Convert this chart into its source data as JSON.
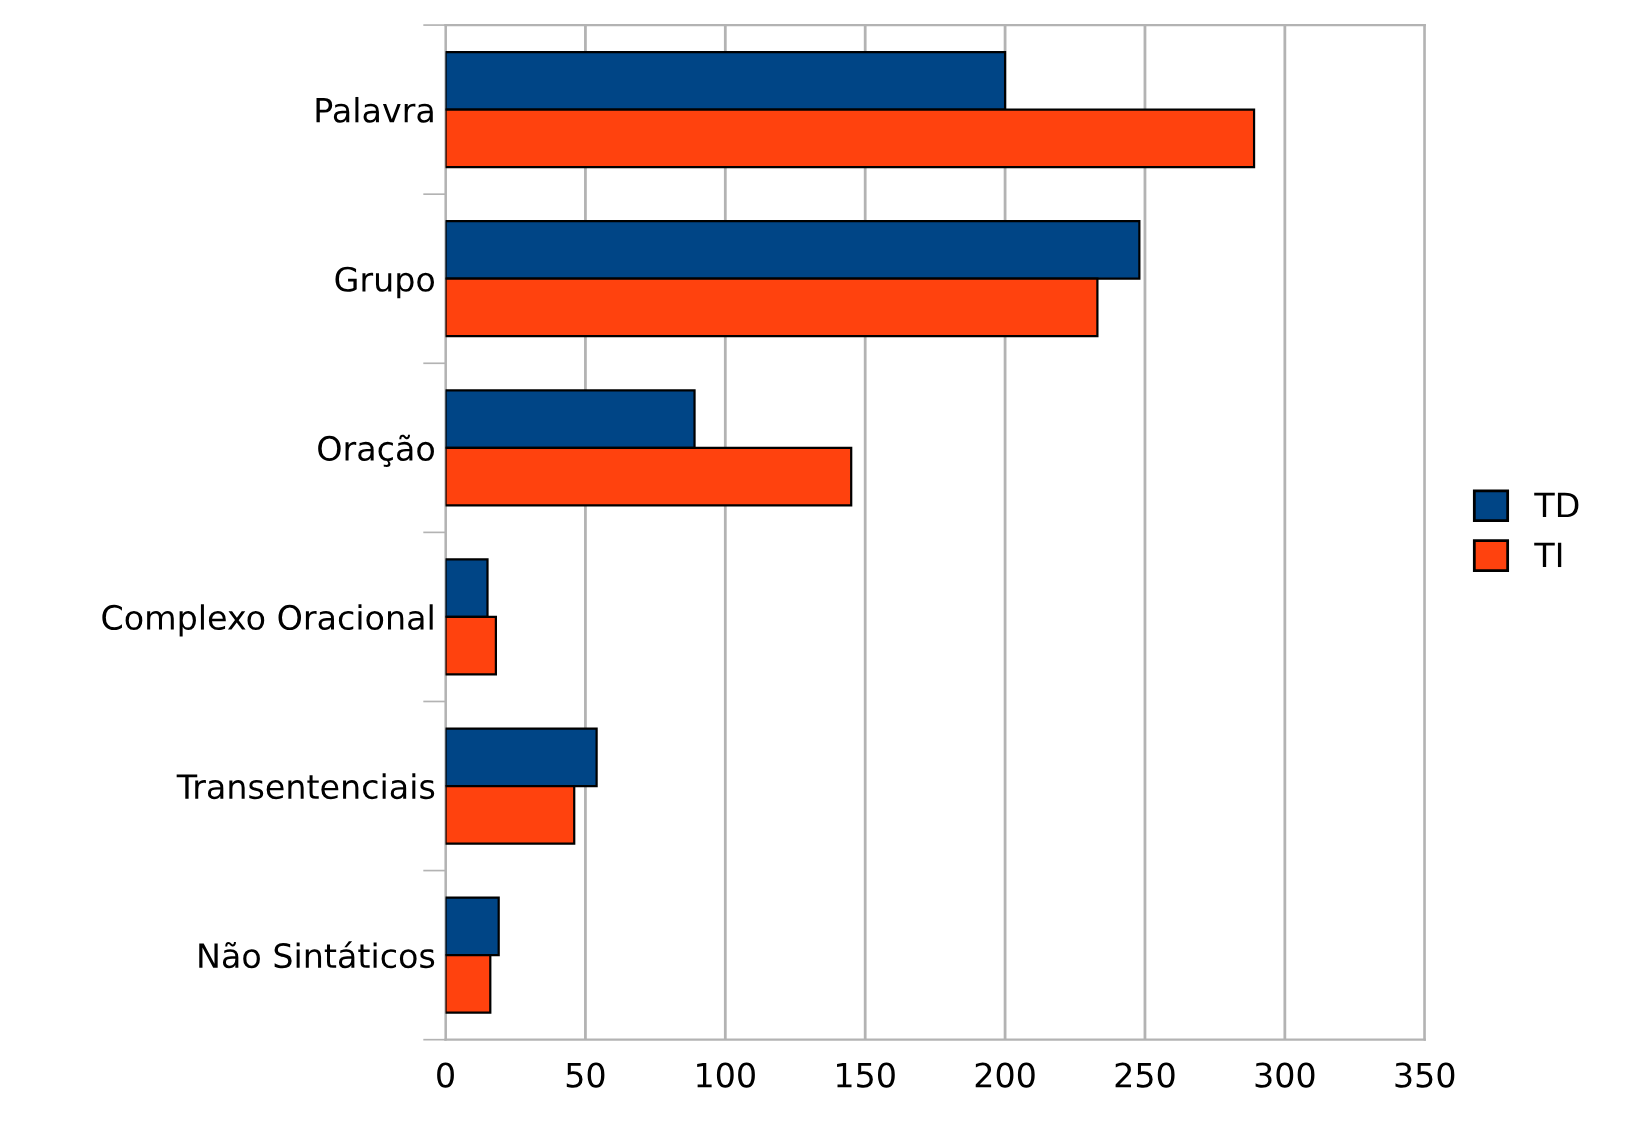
{
  "chart_data": {
    "type": "bar",
    "orientation": "horizontal",
    "categories": [
      "Palavra",
      "Grupo",
      "Oração",
      "Complexo Oracional",
      "Transentenciais",
      "Não Sintáticos"
    ],
    "series": [
      {
        "name": "TD",
        "color": "#004586",
        "values": [
          200,
          248,
          89,
          15,
          54,
          19
        ]
      },
      {
        "name": "TI",
        "color": "#ff420e",
        "values": [
          289,
          233,
          145,
          18,
          46,
          16
        ]
      }
    ],
    "xlim": [
      0,
      350
    ],
    "xticks": [
      0,
      50,
      100,
      150,
      200,
      250,
      300,
      350
    ],
    "grid": "x",
    "legend": "right"
  }
}
